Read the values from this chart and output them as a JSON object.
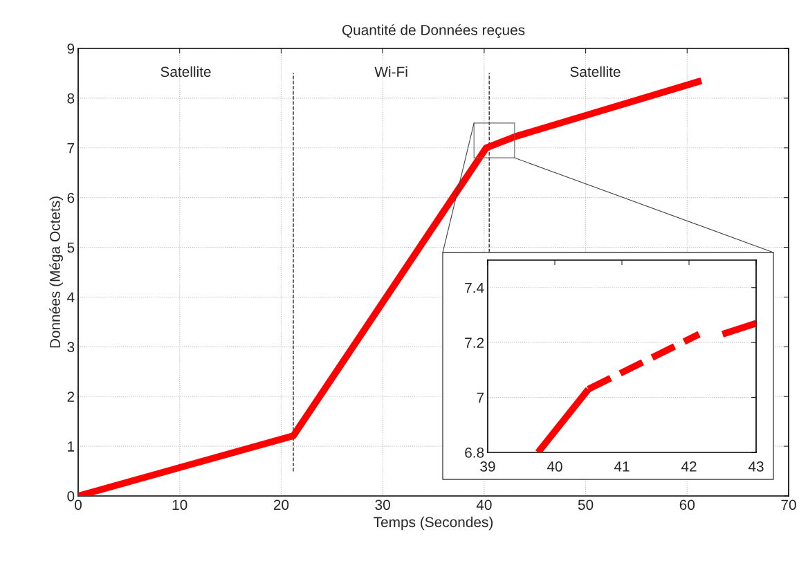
{
  "chart_data": [
    {
      "type": "line",
      "title": "Quantité de Données reçues",
      "xlabel": "Temps (Secondes)",
      "ylabel": "Données (Méga Octets)",
      "series": [
        {
          "color": "#ff0000",
          "x": [
            0,
            21.2,
            40.2,
            43.1,
            61.4
          ],
          "values": [
            0,
            1.21,
            7.0,
            7.23,
            8.35
          ]
        }
      ],
      "xlim": [
        0,
        70
      ],
      "ylim": [
        0,
        9
      ],
      "xticks": [
        0,
        10,
        20,
        30,
        40,
        50,
        60,
        70
      ],
      "yticks": [
        0,
        1,
        2,
        3,
        4,
        5,
        6,
        7,
        8,
        9
      ],
      "ref_lines": [
        {
          "axis": "x",
          "value": 21.2,
          "line_style": "dashed",
          "color": "#333333"
        },
        {
          "axis": "x",
          "value": 40.5,
          "line_style": "dashed",
          "color": "#333333"
        }
      ],
      "annotations": [
        "Satellite",
        "Wi-Fi",
        "Satellite"
      ],
      "grid": true,
      "legend": false
    },
    {
      "type": "line",
      "series": [
        {
          "color": "#ff0000",
          "x": [
            39.75,
            40.5
          ],
          "values": [
            6.8,
            7.03
          ],
          "line_style": "solid"
        },
        {
          "color": "#ff0000",
          "x": [
            40.5,
            42.15
          ],
          "values": [
            7.03,
            7.23
          ],
          "line_style": "dashed"
        },
        {
          "color": "#ff0000",
          "x": [
            42.5,
            43
          ],
          "values": [
            7.23,
            7.27
          ],
          "line_style": "solid"
        }
      ],
      "xlim": [
        39,
        43
      ],
      "ylim": [
        6.8,
        7.5
      ],
      "xticks": [
        39,
        40,
        41,
        42,
        43
      ],
      "yticks": [
        6.8,
        7,
        7.2,
        7.4
      ],
      "grid": "y",
      "legend": false
    }
  ]
}
